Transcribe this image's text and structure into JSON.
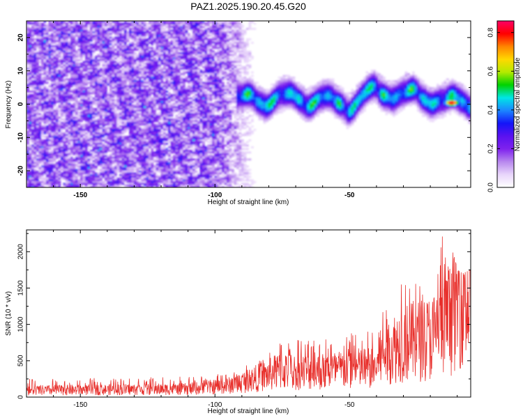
{
  "figure_title": "PAZ1.2025.190.20.45.G20",
  "colors": {
    "snr_line": "#e8302c",
    "colormap": [
      "#ffffff",
      "#e9d6fb",
      "#b888ee",
      "#7f22ee",
      "#5a12f0",
      "#1414f8",
      "#1b86ff",
      "#00e6e6",
      "#00d200",
      "#b4ea00",
      "#ffd800",
      "#ff8400",
      "#ff0000",
      "#ff0066"
    ]
  },
  "chart_data": [
    {
      "type": "heatmap",
      "title": "",
      "xlabel": "Height of straight line (km)",
      "ylabel": "Frequency (Hz)",
      "xlim": [
        -170,
        -5
      ],
      "ylim": [
        -25,
        25
      ],
      "xticks": [
        -150,
        -100,
        -50
      ],
      "yticks": [
        -20,
        -10,
        0,
        10,
        20
      ],
      "colorbar": {
        "label": "Normalized spectral amplitude",
        "range": [
          0,
          0.86
        ],
        "ticks": [
          0.0,
          0.2,
          0.4,
          0.6,
          0.8
        ]
      },
      "signal_trace": {
        "x": [
          -90,
          -80,
          -70,
          -60,
          -50,
          -40,
          -30,
          -20,
          -10,
          -5
        ],
        "frequency": [
          1.5,
          1.5,
          2.0,
          1.0,
          0.0,
          4.0,
          3.0,
          2.0,
          0.5,
          1.0
        ],
        "peak": {
          "x": -12,
          "frequency": 0.5,
          "amplitude": 0.86
        }
      }
    },
    {
      "type": "line",
      "title": "",
      "xlabel": "Height of straight line (km)",
      "ylabel": "SNR (10 * v/v)",
      "xlim": [
        -170,
        -5
      ],
      "ylim": [
        0,
        2300
      ],
      "xticks": [
        -150,
        -100,
        -50
      ],
      "yticks": [
        0,
        500,
        1000,
        1500,
        2000
      ],
      "envelope": {
        "x": [
          -170,
          -140,
          -110,
          -95,
          -90,
          -80,
          -75,
          -70,
          -60,
          -50,
          -40,
          -37,
          -33,
          -30,
          -20,
          -15,
          -12,
          -10,
          -8,
          -5
        ],
        "mean": [
          100,
          110,
          120,
          170,
          220,
          330,
          400,
          370,
          380,
          420,
          440,
          650,
          750,
          800,
          880,
          1000,
          1200,
          1500,
          1600,
          1550
        ],
        "max": [
          250,
          260,
          280,
          330,
          420,
          600,
          850,
          800,
          800,
          900,
          950,
          1350,
          1600,
          2000,
          1750,
          2300,
          2100,
          1750,
          1700,
          1750
        ]
      }
    }
  ]
}
